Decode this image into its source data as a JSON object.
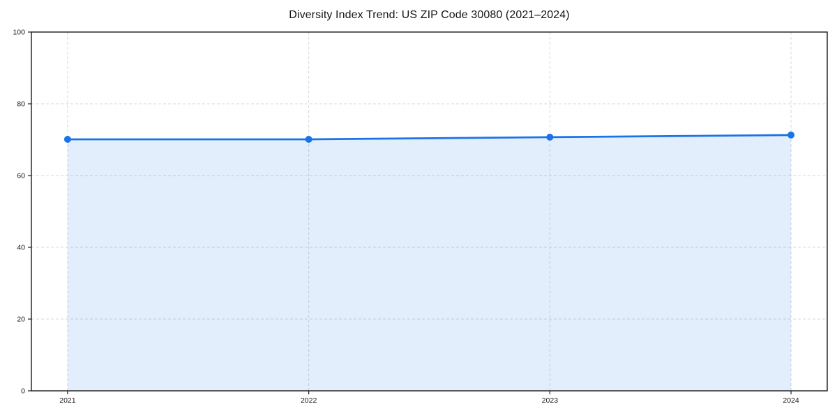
{
  "chart_data": {
    "type": "area",
    "title": "Diversity Index Trend: US ZIP Code 30080 (2021–2024)",
    "categories": [
      "2021",
      "2022",
      "2023",
      "2024"
    ],
    "values": [
      70.1,
      70.1,
      70.7,
      71.3
    ],
    "series_name": "Diversity Index",
    "xlabel": "",
    "ylabel": "",
    "ylim": [
      0,
      100
    ],
    "yticks": [
      0,
      20,
      40,
      60,
      80,
      100
    ],
    "grid": true,
    "grid_style": "dashed",
    "legend": "none",
    "marker": "circle",
    "colors": {
      "line": "#1a73e8",
      "marker": "#1a73e8",
      "fill": "rgba(26,115,232,0.12)",
      "grid": "#d7d7d7",
      "axis": "#1a1a1a",
      "tick_label": "#1a1a1a",
      "title": "#151515",
      "background": "#ffffff"
    }
  }
}
